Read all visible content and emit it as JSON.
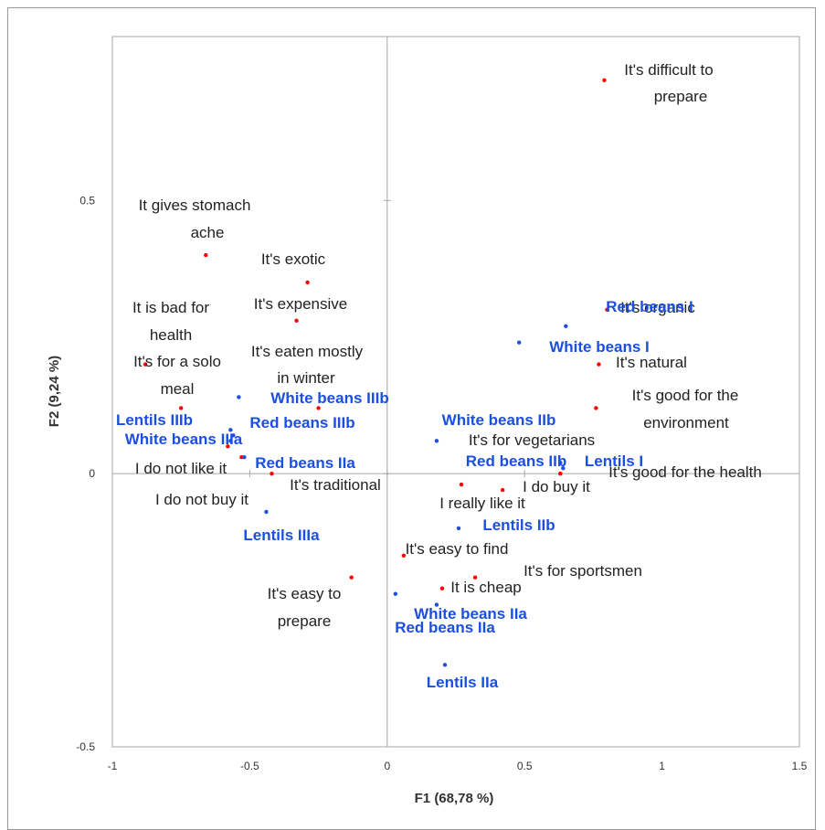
{
  "chart_data": {
    "type": "scatter",
    "title": "",
    "xlabel": "F1 (68,78 %)",
    "ylabel": "F2 (9,24 %)",
    "xlim": [
      -1,
      1.5
    ],
    "ylim": [
      -0.5,
      0.8
    ],
    "x_ticks": [
      "-1",
      "-0.5",
      "0",
      "0.5",
      "1",
      "1.5"
    ],
    "y_ticks": [
      "-0.5",
      "0",
      "0.5"
    ],
    "grid": false,
    "colors": {
      "variables": "#ff0000",
      "observations": "#1a4fe0",
      "variables_text": "#222222",
      "observations_text": "#1a4fe0"
    },
    "series": [
      {
        "points": [
          {
            "label": "It's difficult to prepare",
            "x": 0.79,
            "y": 0.72
          },
          {
            "label": "It gives stomach ache",
            "x": -0.66,
            "y": 0.4
          },
          {
            "label": "It's exotic",
            "x": -0.29,
            "y": 0.35
          },
          {
            "label": "It's expensive",
            "x": -0.33,
            "y": 0.28
          },
          {
            "label": "It's organic",
            "x": 0.8,
            "y": 0.3
          },
          {
            "label": "It is bad for health",
            "x": -0.88,
            "y": 0.2
          },
          {
            "label": "It's eaten mostly in winter",
            "x": -0.25,
            "y": 0.12
          },
          {
            "label": "It's natural",
            "x": 0.77,
            "y": 0.2
          },
          {
            "label": "It's for a solo meal",
            "x": -0.75,
            "y": 0.12
          },
          {
            "label": "It's good for the environment",
            "x": 0.76,
            "y": 0.12
          },
          {
            "label": "I do not like it",
            "x": -0.58,
            "y": 0.05
          },
          {
            "label": "It's for vegetarians",
            "x": 0.63,
            "y": 0.0
          },
          {
            "label": "It's traditional",
            "x": -0.42,
            "y": 0.0
          },
          {
            "label": "It's good for the health",
            "x": 0.63,
            "y": 0.0
          },
          {
            "label": "I do buy it",
            "x": 0.42,
            "y": -0.03
          },
          {
            "label": "I really like it",
            "x": 0.27,
            "y": -0.02
          },
          {
            "label": "I do not buy it",
            "x": -0.53,
            "y": 0.03
          },
          {
            "label": "It's easy to find",
            "x": 0.06,
            "y": -0.15
          },
          {
            "label": "It's for sportsmen",
            "x": 0.32,
            "y": -0.19
          },
          {
            "label": "It's easy to prepare",
            "x": -0.13,
            "y": -0.19
          },
          {
            "label": "It is cheap",
            "x": 0.2,
            "y": -0.21
          }
        ]
      },
      {
        "points": [
          {
            "label": "Red beans I",
            "x": 0.65,
            "y": 0.27
          },
          {
            "label": "White beans I",
            "x": 0.48,
            "y": 0.24
          },
          {
            "label": "White beans IIIb",
            "x": -0.54,
            "y": 0.14
          },
          {
            "label": "Lentils IIIb",
            "x": -0.57,
            "y": 0.08
          },
          {
            "label": "Red beans IIIb",
            "x": -0.56,
            "y": 0.07
          },
          {
            "label": "White beans IIIa",
            "x": -0.57,
            "y": 0.06
          },
          {
            "label": "White beans IIb",
            "x": 0.18,
            "y": 0.06
          },
          {
            "label": "Red beans IIa",
            "x": -0.52,
            "y": 0.03
          },
          {
            "label": "Red beans IIb",
            "x": 0.63,
            "y": 0.02
          },
          {
            "label": "Lentils I",
            "x": 0.64,
            "y": 0.01
          },
          {
            "label": "Lentils IIIa",
            "x": -0.44,
            "y": -0.07
          },
          {
            "label": "Lentils IIb",
            "x": 0.26,
            "y": -0.1
          },
          {
            "label": "White beans IIa",
            "x": 0.03,
            "y": -0.22
          },
          {
            "label": "Red beans IIa",
            "x": 0.18,
            "y": -0.24
          },
          {
            "label": "Lentils IIa",
            "x": 0.21,
            "y": -0.35
          }
        ]
      }
    ]
  },
  "plot_labels": [
    {
      "text": "It's difficult to",
      "kind": "var"
    },
    {
      "text": "prepare",
      "kind": "var"
    },
    {
      "text": "It gives stomach",
      "kind": "var"
    },
    {
      "text": "ache",
      "kind": "var"
    },
    {
      "text": "It's exotic",
      "kind": "var"
    },
    {
      "text": "It's expensive",
      "kind": "var"
    },
    {
      "text": "It's organic",
      "kind": "var"
    },
    {
      "text": "It is bad for",
      "kind": "var"
    },
    {
      "text": "health",
      "kind": "var"
    },
    {
      "text": "It's eaten mostly",
      "kind": "var"
    },
    {
      "text": "in winter",
      "kind": "var"
    },
    {
      "text": "It's natural",
      "kind": "var"
    },
    {
      "text": "It's for a solo",
      "kind": "var"
    },
    {
      "text": "meal",
      "kind": "var"
    },
    {
      "text": "It's good for the",
      "kind": "var"
    },
    {
      "text": "environment",
      "kind": "var"
    },
    {
      "text": "I do not like it",
      "kind": "var"
    },
    {
      "text": "It's for vegetarians",
      "kind": "var"
    },
    {
      "text": "It's traditional",
      "kind": "var"
    },
    {
      "text": "It's good for the health",
      "kind": "var"
    },
    {
      "text": "I do buy it",
      "kind": "var"
    },
    {
      "text": "I really like it",
      "kind": "var"
    },
    {
      "text": "I do not buy it",
      "kind": "var"
    },
    {
      "text": "It's easy to find",
      "kind": "var"
    },
    {
      "text": "It's for sportsmen",
      "kind": "var"
    },
    {
      "text": "It's easy to",
      "kind": "var"
    },
    {
      "text": "prepare",
      "kind": "var"
    },
    {
      "text": "It is cheap",
      "kind": "var"
    },
    {
      "text": "Red beans I",
      "kind": "obs"
    },
    {
      "text": "White beans I",
      "kind": "obs"
    },
    {
      "text": "White beans IIIb",
      "kind": "obs"
    },
    {
      "text": "Lentils IIIb",
      "kind": "obs"
    },
    {
      "text": "Red beans IIIb",
      "kind": "obs"
    },
    {
      "text": "White beans IIIa",
      "kind": "obs"
    },
    {
      "text": "White beans IIb",
      "kind": "obs"
    },
    {
      "text": "Red beans IIa",
      "kind": "obs"
    },
    {
      "text": "Red beans IIb",
      "kind": "obs"
    },
    {
      "text": "Lentils I",
      "kind": "obs"
    },
    {
      "text": "Lentils IIIa",
      "kind": "obs"
    },
    {
      "text": "Lentils IIb",
      "kind": "obs"
    },
    {
      "text": "White beans IIa",
      "kind": "obs"
    },
    {
      "text": "Red beans IIa",
      "kind": "obs"
    },
    {
      "text": "Lentils IIa",
      "kind": "obs"
    }
  ]
}
